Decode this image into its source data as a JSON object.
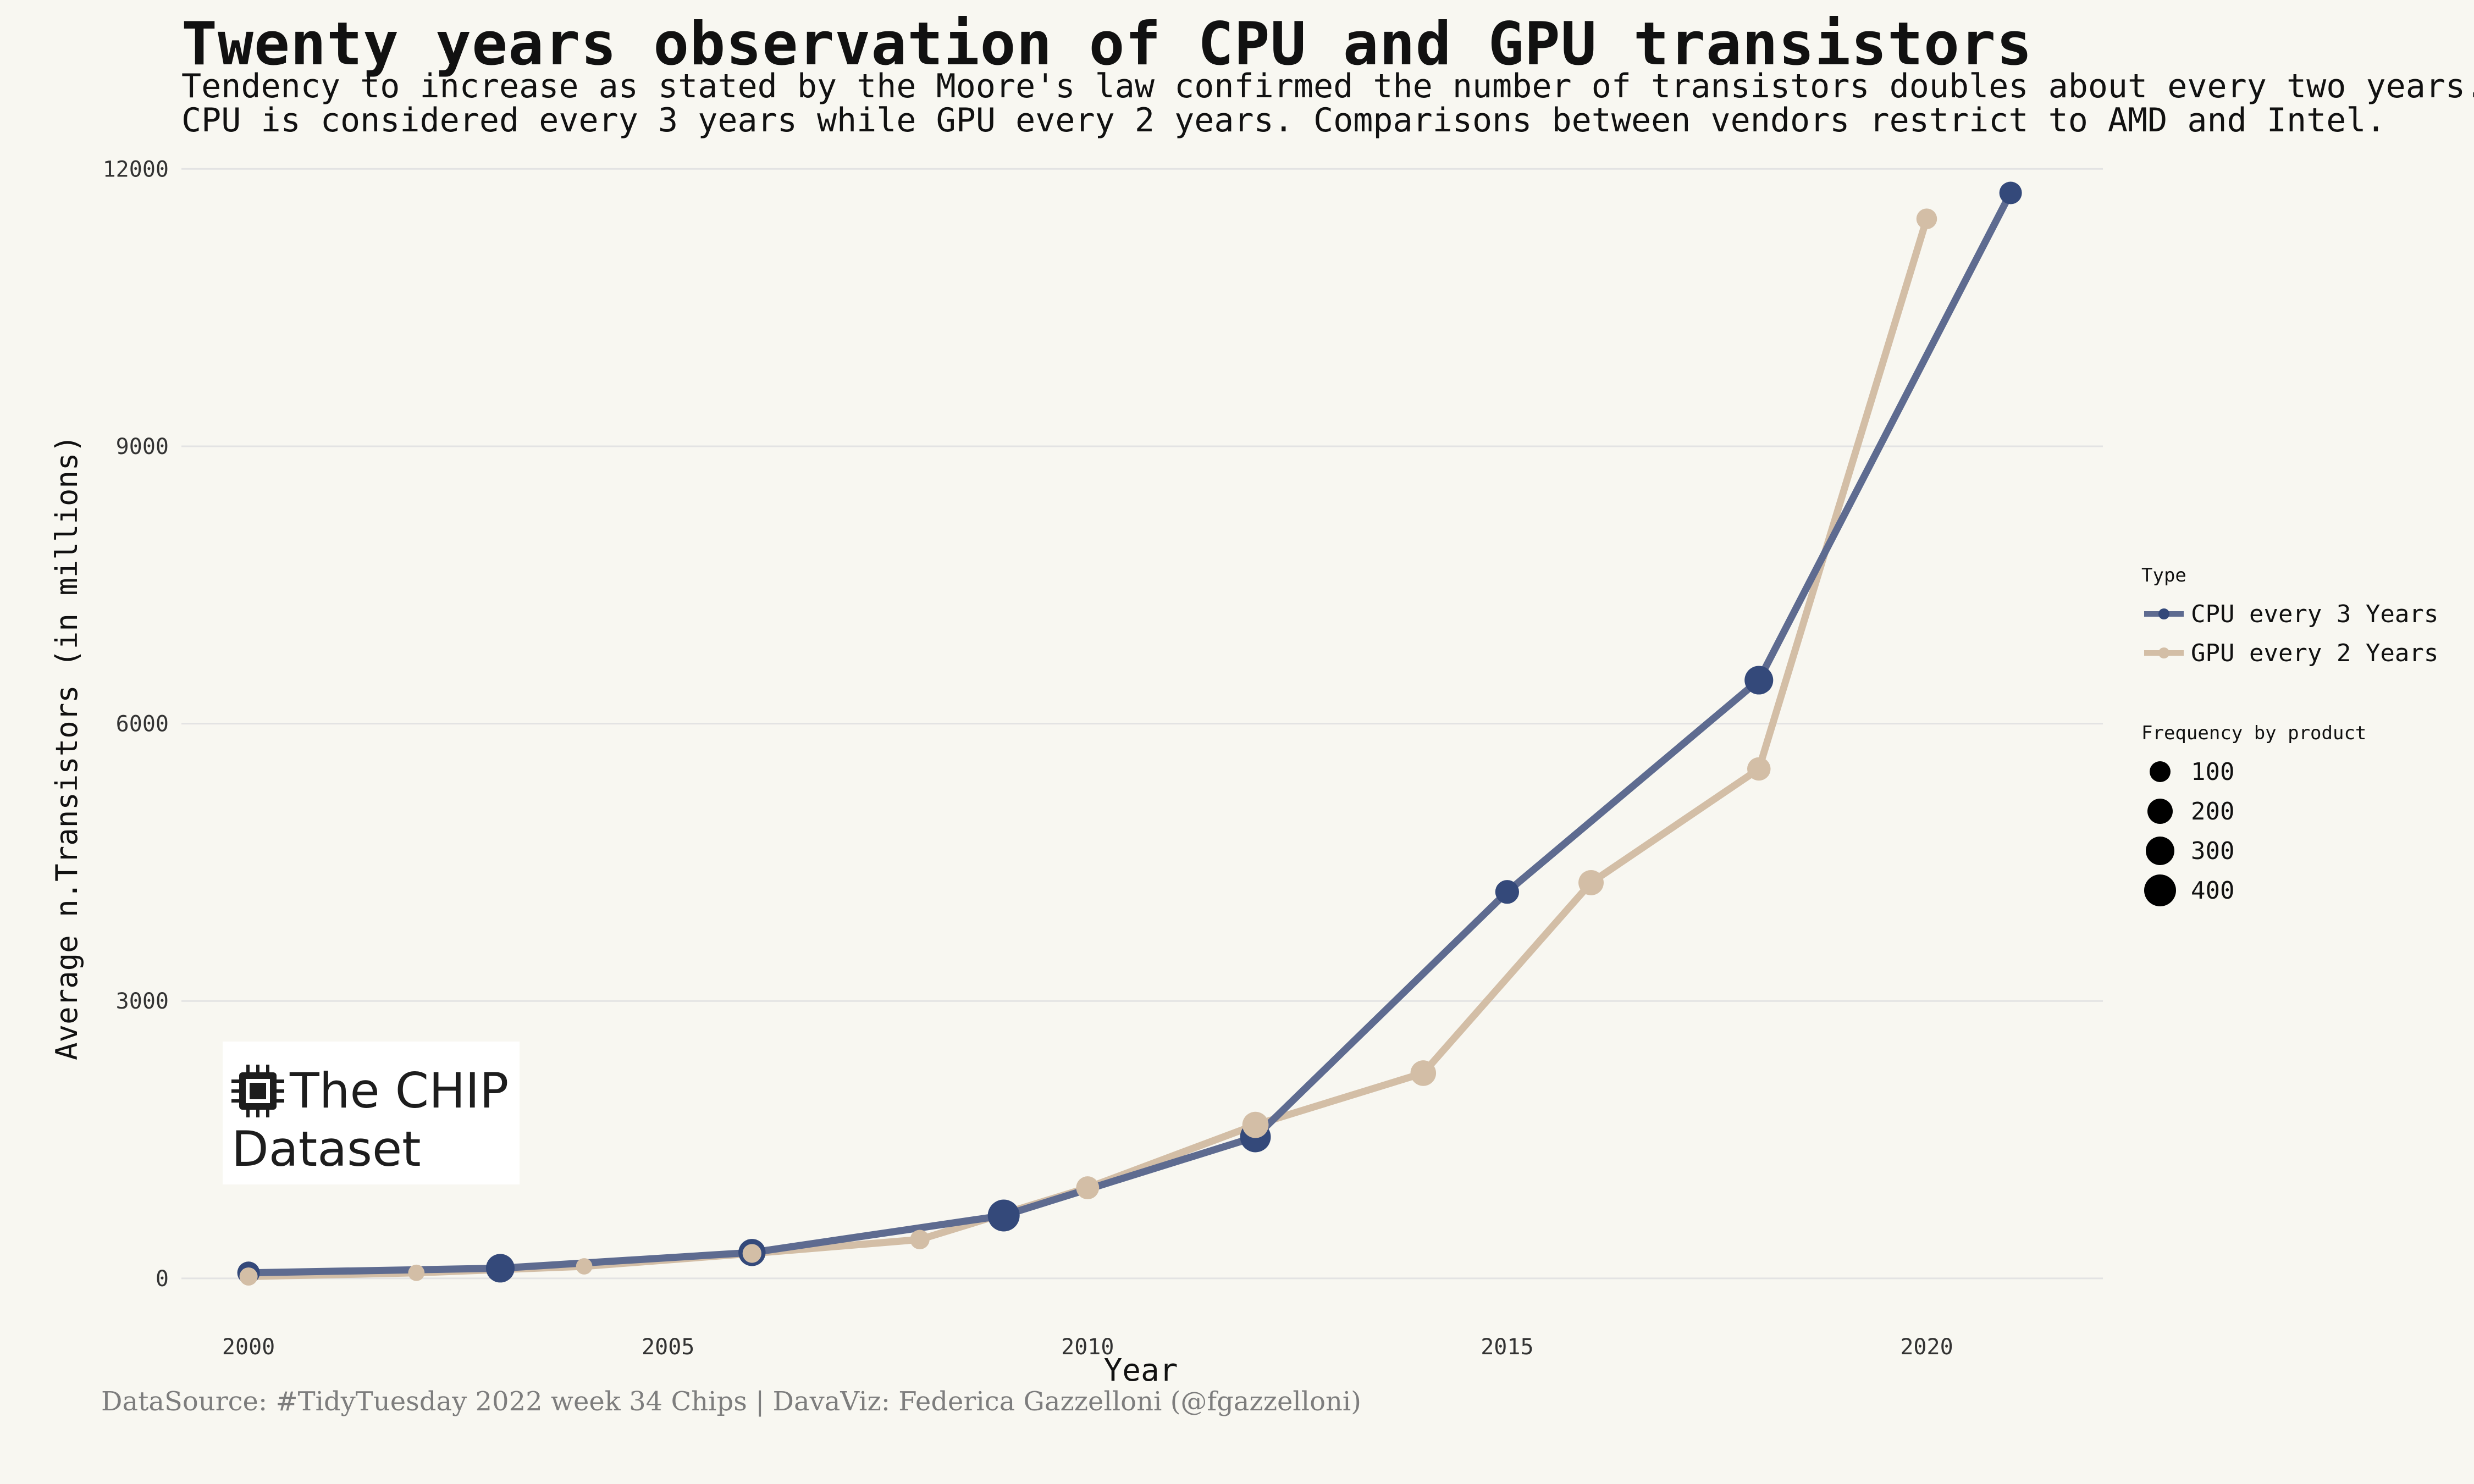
{
  "title": "Twenty years observation of CPU and GPU transistors",
  "subtitle_line1": "Tendency to increase as stated by the Moore's law confirmed the number of transistors doubles about every two years.",
  "subtitle_line2": "CPU is considered every 3 years while GPU every 2 years. Comparisons between vendors restrict to AMD and Intel.",
  "logo": {
    "line1": "The CHIP",
    "line2": "Dataset",
    "icon": "chip-icon"
  },
  "caption": "DataSource: #TidyTuesday 2022 week 34 Chips | DavaViz: Federica Gazzelloni (@fgazzelloni)",
  "legend": {
    "type_title": "Type",
    "size_title": "Frequency by product",
    "size_levels": [
      "100",
      "200",
      "300",
      "400"
    ]
  },
  "colors": {
    "cpu": "#34497a",
    "gpu": "#d3bea6",
    "background": "#f8f7f1",
    "grid": "#e3e3e3"
  },
  "chart_data": {
    "type": "line",
    "title": "Twenty years observation of CPU and GPU transistors",
    "xlabel": "Year",
    "ylabel": "Average n.Transistors (in millions)",
    "xlim": [
      1999.2,
      2022.1
    ],
    "ylim": [
      -500,
      12400
    ],
    "x_ticks": [
      2000,
      2005,
      2010,
      2015,
      2020
    ],
    "y_ticks": [
      0,
      3000,
      6000,
      9000,
      12000
    ],
    "grid": "horizontal",
    "legend_position": "right",
    "series": [
      {
        "name": "CPU every 3 Years",
        "x": [
          2000,
          2003,
          2006,
          2009,
          2012,
          2015,
          2018,
          2021
        ],
        "y": [
          60,
          110,
          280,
          680,
          1530,
          4180,
          6470,
          11740
        ],
        "frequency": [
          120,
          300,
          250,
          430,
          380,
          150,
          300,
          120
        ]
      },
      {
        "name": "GPU every 2 Years",
        "x": [
          2000,
          2002,
          2004,
          2006,
          2008,
          2010,
          2012,
          2014,
          2016,
          2018,
          2020
        ],
        "y": [
          20,
          60,
          130,
          270,
          420,
          980,
          1660,
          2220,
          4280,
          5510,
          11460
        ],
        "frequency": [
          40,
          20,
          20,
          50,
          60,
          130,
          220,
          200,
          190,
          140,
          80
        ]
      }
    ]
  }
}
